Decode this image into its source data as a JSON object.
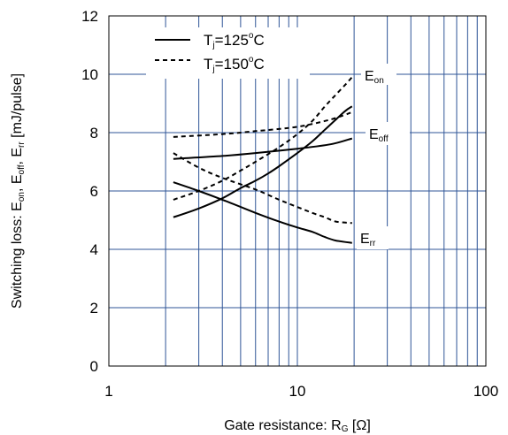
{
  "chart_data": {
    "type": "line",
    "x_scale": "log",
    "xlim": [
      1,
      100
    ],
    "ylim": [
      0,
      12
    ],
    "grid": true,
    "legend_placement": "top-left",
    "x_ticks": [
      "1",
      "10",
      "100"
    ],
    "y_ticks": [
      "0",
      "2",
      "4",
      "6",
      "8",
      "10",
      "12"
    ],
    "xlabel": {
      "main": "Gate resistance: R",
      "sub": "G",
      "unit": " [Ω]"
    },
    "ylabel": {
      "prefix": "Switching loss: E",
      "sub_on": "on",
      "sep1": ",  E",
      "sub_off": "off",
      "sep2": ",  E",
      "sub_rr": "rr",
      "unit": " [mJ/pulse]"
    },
    "legend": [
      {
        "name": "T",
        "sub": "j",
        "rest": "=125",
        "sup": "o",
        "unit": "C",
        "style": "solid"
      },
      {
        "name": "T",
        "sub": "j",
        "rest": "=150",
        "sup": "o",
        "unit": "C",
        "style": "dashed"
      }
    ],
    "curve_labels": [
      {
        "main": "E",
        "sub": "on"
      },
      {
        "main": "E",
        "sub": "off"
      },
      {
        "main": "E",
        "sub": "rr"
      }
    ],
    "series": [
      {
        "curve": "Eon",
        "temp": "125",
        "x": [
          2.2,
          3,
          4,
          5,
          6,
          7,
          8,
          10,
          12,
          14,
          16,
          18,
          19.5
        ],
        "y": [
          5.1,
          5.4,
          5.75,
          6.1,
          6.35,
          6.6,
          6.85,
          7.3,
          7.7,
          8.1,
          8.45,
          8.75,
          8.9
        ]
      },
      {
        "curve": "Eon",
        "temp": "150",
        "x": [
          2.2,
          3,
          4,
          5,
          6,
          8,
          10,
          12,
          14,
          16,
          18,
          19.5
        ],
        "y": [
          5.7,
          6.0,
          6.35,
          6.7,
          7.0,
          7.5,
          7.95,
          8.4,
          8.9,
          9.3,
          9.65,
          9.9
        ]
      },
      {
        "curve": "Eoff",
        "temp": "125",
        "x": [
          2.2,
          4,
          6,
          10,
          15,
          19.5
        ],
        "y": [
          7.1,
          7.2,
          7.3,
          7.45,
          7.6,
          7.8
        ]
      },
      {
        "curve": "Eoff",
        "temp": "150",
        "x": [
          2.2,
          4,
          6,
          10,
          15,
          19.5
        ],
        "y": [
          7.85,
          7.95,
          8.05,
          8.2,
          8.45,
          8.7
        ]
      },
      {
        "curve": "Err",
        "temp": "125",
        "x": [
          2.2,
          3,
          4,
          6,
          8,
          10,
          12,
          14,
          16,
          19.5
        ],
        "y": [
          6.3,
          6.0,
          5.7,
          5.25,
          4.95,
          4.75,
          4.6,
          4.42,
          4.3,
          4.22
        ]
      },
      {
        "curve": "Err",
        "temp": "150",
        "x": [
          2.2,
          3,
          4,
          6,
          8,
          10,
          12,
          14,
          16,
          19.5
        ],
        "y": [
          7.3,
          6.8,
          6.45,
          6.05,
          5.7,
          5.45,
          5.25,
          5.1,
          4.95,
          4.9
        ]
      }
    ]
  }
}
